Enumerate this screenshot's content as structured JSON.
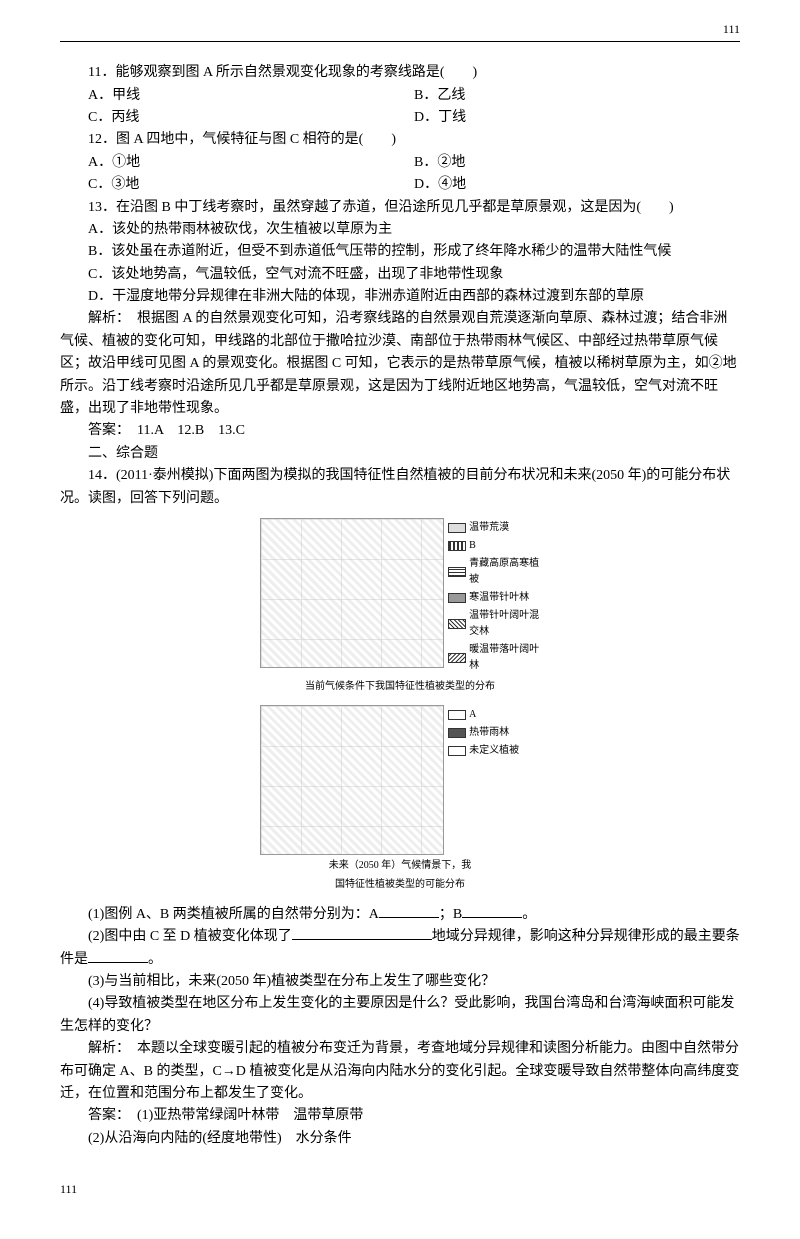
{
  "header": {
    "page_num_top": "111"
  },
  "q11": {
    "stem": "11．能够观察到图 A 所示自然景观变化现象的考察线路是(　　)",
    "A": "A．甲线",
    "B": "B．乙线",
    "C": "C．丙线",
    "D": "D．丁线"
  },
  "q12": {
    "stem": "12．图 A 四地中，气候特征与图 C 相符的是(　　)",
    "A": "A．①地",
    "B": "B．②地",
    "C": "C．③地",
    "D": "D．④地"
  },
  "q13": {
    "stem": "13．在沿图 B 中丁线考察时，虽然穿越了赤道，但沿途所见几乎都是草原景观，这是因为(　　)",
    "A": "A．该处的热带雨林被砍伐，次生植被以草原为主",
    "B": "B．该处虽在赤道附近，但受不到赤道低气压带的控制，形成了终年降水稀少的温带大陆性气候",
    "C": "C．该处地势高，气温较低，空气对流不旺盛，出现了非地带性现象",
    "D": "D．干湿度地带分异规律在非洲大陆的体现，非洲赤道附近由西部的森林过渡到东部的草原"
  },
  "analysis1": "解析：　根据图 A 的自然景观变化可知，沿考察线路的自然景观自荒漠逐渐向草原、森林过渡；结合非洲气候、植被的变化可知，甲线路的北部位于撒哈拉沙漠、南部位于热带雨林气候区、中部经过热带草原气候区；故沿甲线可见图 A 的景观变化。根据图 C 可知，它表示的是热带草原气候，植被以稀树草原为主，如②地所示。沿丁线考察时沿途所见几乎都是草原景观，这是因为丁线附近地区地势高，气温较低，空气对流不旺盛，出现了非地带性现象。",
  "answer1": "答案：　11.A　12.B　13.C",
  "section2": "二、综合题",
  "q14": {
    "stem": "14．(2011·泰州模拟)下面两图为模拟的我国特征性自然植被的目前分布状况和未来(2050 年)的可能分布状况。读图，回答下列问题。"
  },
  "figure1": {
    "caption": "当前气候条件下我国特征性植被类型的分布",
    "legend": [
      {
        "label": "温带荒漠",
        "pattern": "#ddd"
      },
      {
        "label": "B",
        "pattern": "repeating-linear-gradient(90deg,#333,#333 2px,#fff 2px,#fff 4px)"
      },
      {
        "label": "青藏高原高寒植被",
        "pattern": "repeating-linear-gradient(0deg,#333,#333 1px,#fff 1px,#fff 3px)"
      },
      {
        "label": "寒温带针叶林",
        "pattern": "#999"
      },
      {
        "label": "温带针叶阔叶混交林",
        "pattern": "repeating-linear-gradient(45deg,#333,#333 1px,#fff 1px,#fff 3px)"
      },
      {
        "label": "暖温带落叶阔叶林",
        "pattern": "repeating-linear-gradient(-45deg,#333,#333 1px,#fff 1px,#fff 3px)"
      }
    ]
  },
  "figure2": {
    "caption_l1": "未来（2050 年）气候情景下，我",
    "caption_l2": "国特征性植被类型的可能分布",
    "legend": [
      {
        "label": "A",
        "pattern": "#fff"
      },
      {
        "label": "热带雨林",
        "pattern": "#555"
      },
      {
        "label": "未定义植被",
        "pattern": "#fff"
      }
    ]
  },
  "subq": {
    "s1_a": "(1)图例 A、B 两类植被所属的自然带分别为：A",
    "s1_b": "；B",
    "s1_c": "。",
    "s2_a": "(2)图中由 C 至 D 植被变化体现了",
    "s2_b": "地域分异规律，影响这种分异规律形成的最主要条件是",
    "s2_c": "。",
    "s3": "(3)与当前相比，未来(2050 年)植被类型在分布上发生了哪些变化？",
    "s4": "(4)导致植被类型在地区分布上发生变化的主要原因是什么？受此影响，我国台湾岛和台湾海峡面积可能发生怎样的变化？"
  },
  "analysis2": "解析：　本题以全球变暖引起的植被分布变迁为背景，考查地域分异规律和读图分析能力。由图中自然带分布可确定 A、B 的类型，C→D 植被变化是从沿海向内陆水分的变化引起。全球变暖导致自然带整体向高纬度变迁，在位置和范围分布上都发生了变化。",
  "answer2_l1": "答案：　(1)亚热带常绿阔叶林带　温带草原带",
  "answer2_l2": "(2)从沿海向内陆的(经度地带性)　水分条件",
  "footer": {
    "page_num_bottom": "111"
  }
}
